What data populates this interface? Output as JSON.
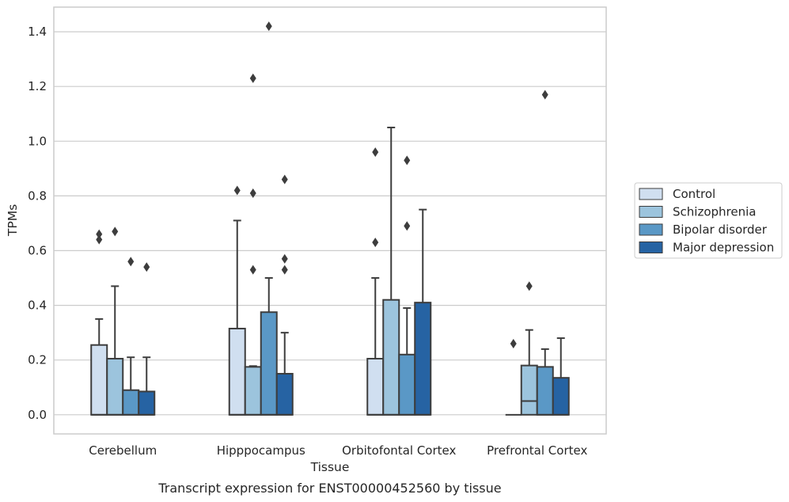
{
  "caption": "Transcript expression for ENST00000452560 by tissue",
  "chart_data": {
    "type": "boxplot",
    "xlabel": "Tissue",
    "ylabel": "TPMs",
    "ylim": [
      -0.07,
      1.49
    ],
    "yticks": [
      0.0,
      0.2,
      0.4,
      0.6,
      0.8,
      1.0,
      1.2,
      1.4
    ],
    "ytick_labels": [
      "0.0",
      "0.2",
      "0.4",
      "0.6",
      "0.8",
      "1.0",
      "1.2",
      "1.4"
    ],
    "grid": "horizontal",
    "legend_position": "right",
    "categories": [
      "Cerebellum",
      "Hipppocampus",
      "Orbitofontal Cortex",
      "Prefrontal Cortex"
    ],
    "series": [
      {
        "name": "Control",
        "color": "#d0dff0",
        "boxes": [
          {
            "q1": 0.0,
            "median": 0.0,
            "q3": 0.255,
            "whisker_low": 0.0,
            "whisker_high": 0.35,
            "outliers": [
              0.64,
              0.66
            ]
          },
          {
            "q1": 0.0,
            "median": 0.0,
            "q3": 0.315,
            "whisker_low": 0.0,
            "whisker_high": 0.71,
            "outliers": [
              0.82
            ]
          },
          {
            "q1": 0.0,
            "median": 0.0,
            "q3": 0.205,
            "whisker_low": 0.0,
            "whisker_high": 0.5,
            "outliers": [
              0.63,
              0.96
            ]
          },
          {
            "q1": 0.0,
            "median": 0.0,
            "q3": 0.0,
            "whisker_low": 0.0,
            "whisker_high": 0.0,
            "outliers": [
              0.26
            ]
          }
        ]
      },
      {
        "name": "Schizophrenia",
        "color": "#9cc4dd",
        "boxes": [
          {
            "q1": 0.0,
            "median": 0.0,
            "q3": 0.205,
            "whisker_low": 0.0,
            "whisker_high": 0.47,
            "outliers": [
              0.67
            ]
          },
          {
            "q1": 0.0,
            "median": 0.0,
            "q3": 0.175,
            "whisker_low": 0.0,
            "whisker_high": 0.178,
            "outliers": [
              0.53,
              0.81,
              1.23
            ]
          },
          {
            "q1": 0.0,
            "median": 0.0,
            "q3": 0.42,
            "whisker_low": 0.0,
            "whisker_high": 1.05,
            "outliers": []
          },
          {
            "q1": 0.0,
            "median": 0.05,
            "q3": 0.18,
            "whisker_low": 0.0,
            "whisker_high": 0.31,
            "outliers": [
              0.47
            ]
          }
        ]
      },
      {
        "name": "Bipolar disorder",
        "color": "#5a98c6",
        "boxes": [
          {
            "q1": 0.0,
            "median": 0.0,
            "q3": 0.09,
            "whisker_low": 0.0,
            "whisker_high": 0.21,
            "outliers": [
              0.56
            ]
          },
          {
            "q1": 0.0,
            "median": 0.0,
            "q3": 0.375,
            "whisker_low": 0.0,
            "whisker_high": 0.5,
            "outliers": [
              1.42
            ]
          },
          {
            "q1": 0.0,
            "median": 0.0,
            "q3": 0.22,
            "whisker_low": 0.0,
            "whisker_high": 0.39,
            "outliers": [
              0.69,
              0.93
            ]
          },
          {
            "q1": 0.0,
            "median": 0.0,
            "q3": 0.175,
            "whisker_low": 0.0,
            "whisker_high": 0.24,
            "outliers": [
              1.17
            ]
          }
        ]
      },
      {
        "name": "Major depression",
        "color": "#2663a3",
        "boxes": [
          {
            "q1": 0.0,
            "median": 0.0,
            "q3": 0.085,
            "whisker_low": 0.0,
            "whisker_high": 0.21,
            "outliers": [
              0.54
            ]
          },
          {
            "q1": 0.0,
            "median": 0.0,
            "q3": 0.15,
            "whisker_low": 0.0,
            "whisker_high": 0.3,
            "outliers": [
              0.53,
              0.57,
              0.86
            ]
          },
          {
            "q1": 0.0,
            "median": 0.0,
            "q3": 0.41,
            "whisker_low": 0.0,
            "whisker_high": 0.75,
            "outliers": []
          },
          {
            "q1": 0.0,
            "median": 0.0,
            "q3": 0.135,
            "whisker_low": 0.0,
            "whisker_high": 0.28,
            "outliers": []
          }
        ]
      }
    ]
  }
}
